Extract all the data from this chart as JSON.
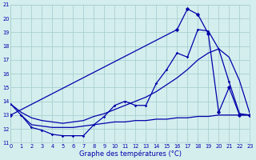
{
  "xlabel": "Graphe des températures (°C)",
  "bg_color": "#d4eeee",
  "grid_color": "#aacece",
  "line_color": "#0000aa",
  "xmin": 0,
  "xmax": 23,
  "ymin": 11,
  "ymax": 21,
  "yticks": [
    11,
    12,
    13,
    14,
    15,
    16,
    17,
    18,
    19,
    20,
    21
  ],
  "xticks": [
    0,
    1,
    2,
    3,
    4,
    5,
    6,
    7,
    8,
    9,
    10,
    11,
    12,
    13,
    14,
    15,
    16,
    17,
    18,
    19,
    20,
    21,
    22,
    23
  ],
  "line_main_x": [
    0,
    1,
    2,
    3,
    4,
    5,
    6,
    7,
    8,
    9,
    10,
    11,
    12,
    13,
    14,
    15,
    16,
    17,
    18,
    19,
    20,
    21,
    22,
    23
  ],
  "line_main_y": [
    13.8,
    13.0,
    12.1,
    11.9,
    11.6,
    11.5,
    11.5,
    11.5,
    12.3,
    12.9,
    13.7,
    14.0,
    13.7,
    13.7,
    15.3,
    16.3,
    17.5,
    17.2,
    19.2,
    19.1,
    17.8,
    15.4,
    13.1,
    13.0
  ],
  "line_smooth_x": [
    0,
    1,
    2,
    3,
    4,
    5,
    6,
    7,
    8,
    9,
    10,
    11,
    12,
    13,
    14,
    15,
    16,
    17,
    18,
    19,
    20,
    21,
    22,
    23
  ],
  "line_smooth_y": [
    13.8,
    13.2,
    12.8,
    12.6,
    12.5,
    12.4,
    12.5,
    12.6,
    12.9,
    13.1,
    13.4,
    13.7,
    14.0,
    14.3,
    14.7,
    15.2,
    15.7,
    16.3,
    17.0,
    17.5,
    17.8,
    17.2,
    15.5,
    13.1
  ],
  "line_upper_x": [
    0,
    16,
    17,
    18,
    19,
    20,
    21,
    22,
    23
  ],
  "line_upper_y": [
    13.0,
    19.2,
    20.7,
    20.3,
    18.9,
    13.2,
    15.0,
    13.0,
    13.0
  ],
  "line_flat_x": [
    1,
    2,
    3,
    4,
    5,
    6,
    7,
    8,
    9,
    10,
    11,
    12,
    13,
    14,
    15,
    16,
    17,
    18,
    19,
    20,
    21,
    22,
    23
  ],
  "line_flat_y": [
    13.0,
    12.3,
    12.2,
    12.1,
    12.1,
    12.1,
    12.2,
    12.3,
    12.4,
    12.5,
    12.5,
    12.6,
    12.6,
    12.7,
    12.7,
    12.8,
    12.8,
    12.9,
    12.9,
    13.0,
    13.0,
    13.0,
    13.0
  ]
}
